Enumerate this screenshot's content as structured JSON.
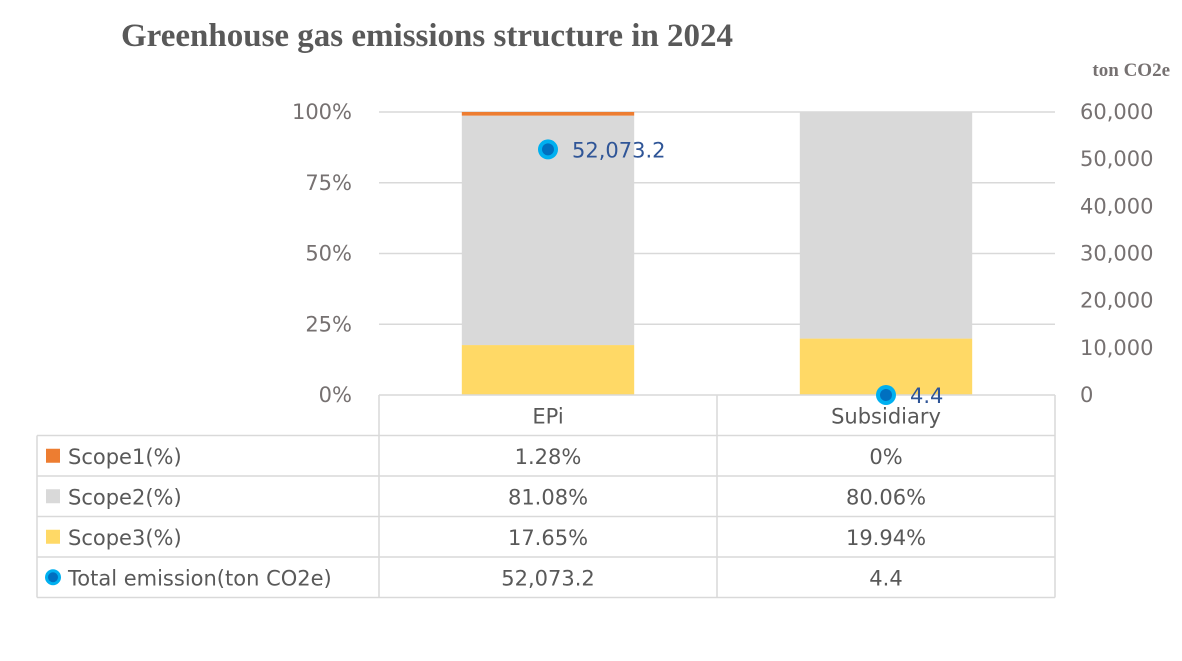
{
  "chart_data": {
    "type": "bar",
    "subtype": "stacked-percent-with-line",
    "title": "Greenhouse gas emissions structure in 2024",
    "secondary_axis_title": "ton CO2e",
    "categories": [
      "EPi",
      "Subsidiary"
    ],
    "series": [
      {
        "name": "Scope1(%)",
        "axis": "primary",
        "color": "#ED7D31",
        "values": [
          1.28,
          0
        ],
        "labels": [
          "1.28%",
          "0%"
        ]
      },
      {
        "name": "Scope2(%)",
        "axis": "primary",
        "color": "#D9D9D9",
        "values": [
          81.08,
          80.06
        ],
        "labels": [
          "81.08%",
          "80.06%"
        ]
      },
      {
        "name": "Scope3(%)",
        "axis": "primary",
        "color": "#FFD966",
        "values": [
          17.65,
          19.94
        ],
        "labels": [
          "17.65%",
          "19.94%"
        ]
      },
      {
        "name": "Total emission(ton CO2e)",
        "axis": "secondary",
        "type": "scatter",
        "color": "#0070C0",
        "values": [
          52073.2,
          4.4
        ],
        "labels": [
          "52,073.2",
          "4.4"
        ]
      }
    ],
    "primary_axis": {
      "ylim": [
        0,
        100
      ],
      "ticks": [
        "0%",
        "25%",
        "50%",
        "75%",
        "100%"
      ],
      "tick_values": [
        0,
        25,
        50,
        75,
        100
      ]
    },
    "secondary_axis": {
      "ylim": [
        0,
        60000
      ],
      "ticks": [
        "0",
        "10,000",
        "20,000",
        "30,000",
        "40,000",
        "50,000",
        "60,000"
      ],
      "tick_values": [
        0,
        10000,
        20000,
        30000,
        40000,
        50000,
        60000
      ]
    },
    "grid": true,
    "legend": "data-table-bottom"
  }
}
